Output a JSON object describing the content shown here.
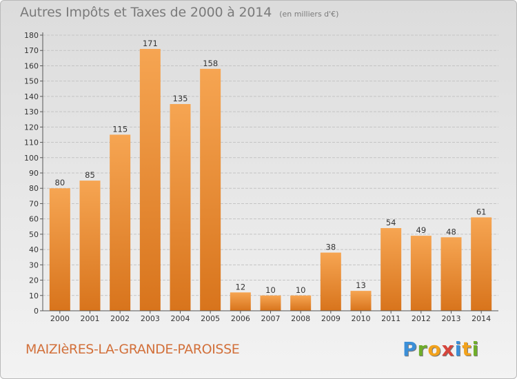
{
  "header": {
    "title": "Autres Impôts et Taxes de 2000 à 2014",
    "subtitle": "(en milliers d'€)"
  },
  "footer": {
    "commune": "MAIZIèRES-LA-GRANDE-PAROISSE",
    "logo_letters": [
      "P",
      "r",
      "o",
      "x",
      "i",
      "t",
      "i"
    ],
    "logo_colors": [
      "#3b8fd8",
      "#6fae2a",
      "#f2a21c",
      "#d6453c",
      "#3b8fd8",
      "#f2a21c",
      "#6fae2a"
    ]
  },
  "colors": {
    "bar_light": "#f6a552",
    "bar_dark": "#d8741c"
  },
  "chart_data": {
    "type": "bar",
    "categories": [
      "2000",
      "2001",
      "2002",
      "2003",
      "2004",
      "2005",
      "2006",
      "2007",
      "2008",
      "2009",
      "2010",
      "2011",
      "2012",
      "2013",
      "2014"
    ],
    "values": [
      80,
      85,
      115,
      171,
      135,
      158,
      12,
      10,
      10,
      38,
      13,
      54,
      49,
      48,
      61
    ],
    "title": "Autres Impôts et Taxes de 2000 à 2014",
    "subtitle": "(en milliers d'€)",
    "ylim": [
      0,
      180
    ],
    "yticks": [
      0,
      10,
      20,
      30,
      40,
      50,
      60,
      70,
      80,
      90,
      100,
      110,
      120,
      130,
      140,
      150,
      160,
      170,
      180
    ],
    "grid": true,
    "data_labels": true
  }
}
